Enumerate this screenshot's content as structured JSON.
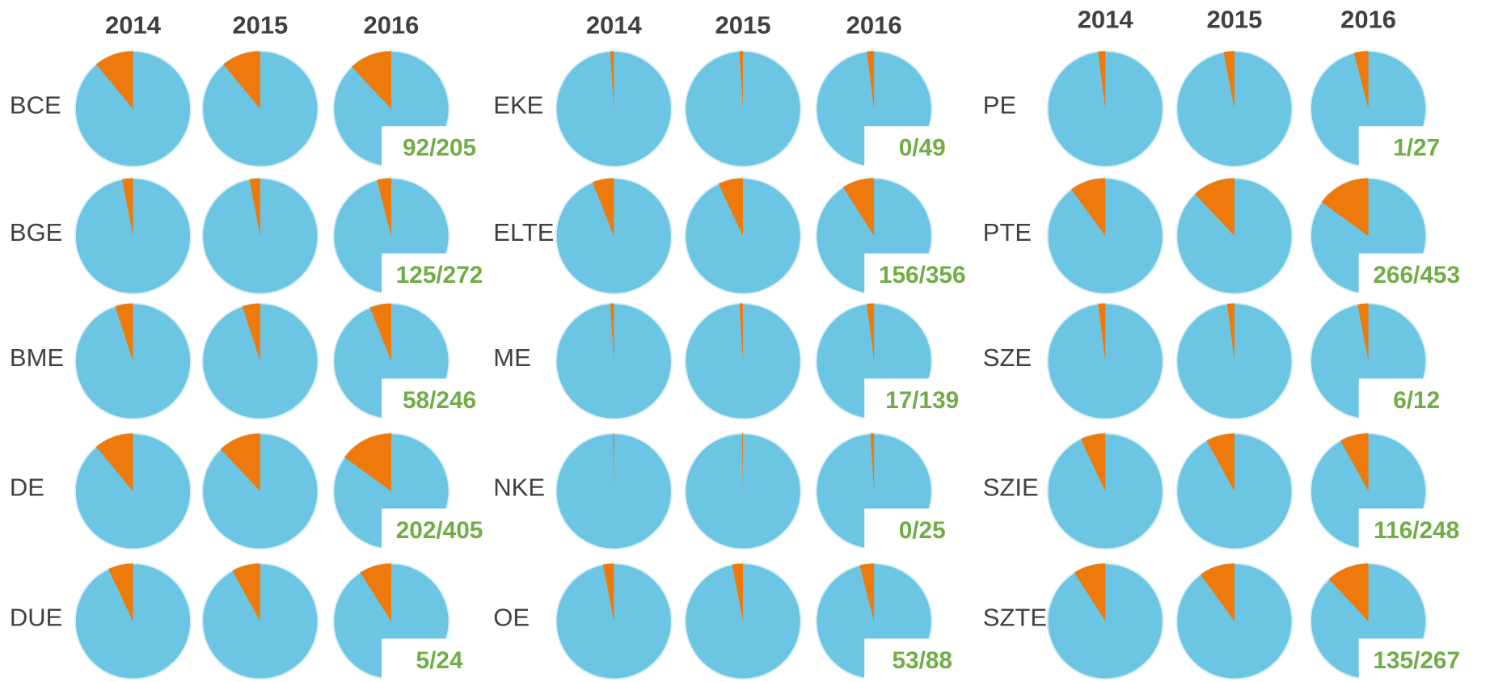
{
  "chart_data": [
    {
      "type": "pie",
      "colors": [
        "#ef7a0c",
        "#6cc5e2"
      ],
      "years": [
        "2014",
        "2015",
        "2016"
      ],
      "rows": [
        {
          "name": "BCE",
          "values": [
            11,
            11,
            12
          ],
          "annotation": "92/205"
        },
        {
          "name": "BGE",
          "values": [
            3,
            3,
            4
          ],
          "annotation": "125/272"
        },
        {
          "name": "BME",
          "values": [
            5,
            5,
            6
          ],
          "annotation": "58/246"
        },
        {
          "name": "DE",
          "values": [
            11,
            12,
            15
          ],
          "annotation": "202/405"
        },
        {
          "name": "DUE",
          "values": [
            7,
            8,
            9
          ],
          "annotation": "5/24"
        }
      ]
    },
    {
      "type": "pie",
      "colors": [
        "#ef7a0c",
        "#6cc5e2"
      ],
      "years": [
        "2014",
        "2015",
        "2016"
      ],
      "rows": [
        {
          "name": "EKE",
          "values": [
            1,
            1,
            2
          ],
          "annotation": "0/49"
        },
        {
          "name": "ELTE",
          "values": [
            6,
            7,
            9
          ],
          "annotation": "156/356"
        },
        {
          "name": "ME",
          "values": [
            1,
            1,
            2
          ],
          "annotation": "17/139"
        },
        {
          "name": "NKE",
          "values": [
            0.3,
            0.3,
            1
          ],
          "annotation": "0/25"
        },
        {
          "name": "OE",
          "values": [
            3,
            3,
            4
          ],
          "annotation": "53/88"
        }
      ]
    },
    {
      "type": "pie",
      "colors": [
        "#ef7a0c",
        "#6cc5e2"
      ],
      "years": [
        "2014",
        "2015",
        "2016"
      ],
      "rows": [
        {
          "name": "PE",
          "values": [
            2,
            3,
            4
          ],
          "annotation": "1/27"
        },
        {
          "name": "PTE",
          "values": [
            10,
            12,
            15
          ],
          "annotation": "266/453"
        },
        {
          "name": "SZE",
          "values": [
            2,
            2,
            3
          ],
          "annotation": "6/12"
        },
        {
          "name": "SZIE",
          "values": [
            7,
            8,
            8
          ],
          "annotation": "116/248"
        },
        {
          "name": "SZTE",
          "values": [
            9,
            10,
            12
          ],
          "annotation": "135/267"
        }
      ]
    }
  ]
}
